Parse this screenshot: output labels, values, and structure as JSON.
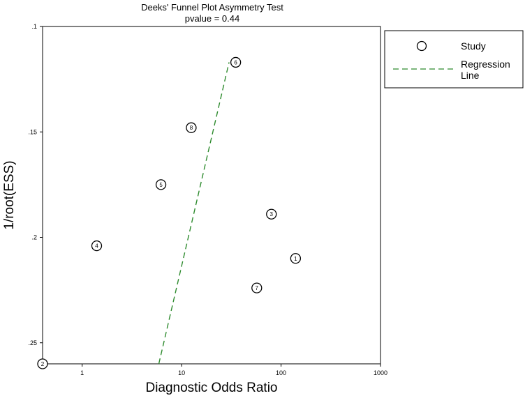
{
  "chart_data": {
    "type": "scatter",
    "title": "Deeks' Funnel Plot Asymmetry Test",
    "subtitle": "pvalue =   0.44",
    "xlabel": "Diagnostic Odds Ratio",
    "ylabel": "1/root(ESS)",
    "x_scale": "log",
    "xlim": [
      0.4,
      1000
    ],
    "ylim": [
      0.1,
      0.26
    ],
    "y_reversed": true,
    "x_ticks": [
      {
        "value": 1,
        "label": "1"
      },
      {
        "value": 10,
        "label": "10"
      },
      {
        "value": 100,
        "label": "100"
      },
      {
        "value": 1000,
        "label": "1000"
      }
    ],
    "y_ticks": [
      {
        "value": 0.1,
        "label": ".1"
      },
      {
        "value": 0.15,
        "label": ".15"
      },
      {
        "value": 0.2,
        "label": ".2"
      },
      {
        "value": 0.25,
        "label": ".25"
      }
    ],
    "grid": false,
    "legend_position": "right",
    "series": [
      {
        "name": "Study",
        "marker": "open-circle",
        "points": [
          {
            "label": "1",
            "x": 140,
            "y": 0.21
          },
          {
            "label": "2",
            "x": 0.4,
            "y": 0.26
          },
          {
            "label": "3",
            "x": 80,
            "y": 0.189
          },
          {
            "label": "4",
            "x": 1.4,
            "y": 0.204
          },
          {
            "label": "5",
            "x": 6.2,
            "y": 0.175
          },
          {
            "label": "6",
            "x": 35,
            "y": 0.117
          },
          {
            "label": "7",
            "x": 57,
            "y": 0.224
          },
          {
            "label": "8",
            "x": 12.5,
            "y": 0.148
          }
        ]
      },
      {
        "name": "Regression Line",
        "style": "dashed",
        "color": "#2e8b2e",
        "points": [
          {
            "x": 5.9,
            "y": 0.26
          },
          {
            "x": 30,
            "y": 0.117
          }
        ]
      }
    ]
  },
  "legend": {
    "items": [
      {
        "label": "Study",
        "name": "legend-study"
      },
      {
        "label_line1": "Regression",
        "label_line2": "Line",
        "name": "legend-regression-line"
      }
    ]
  }
}
